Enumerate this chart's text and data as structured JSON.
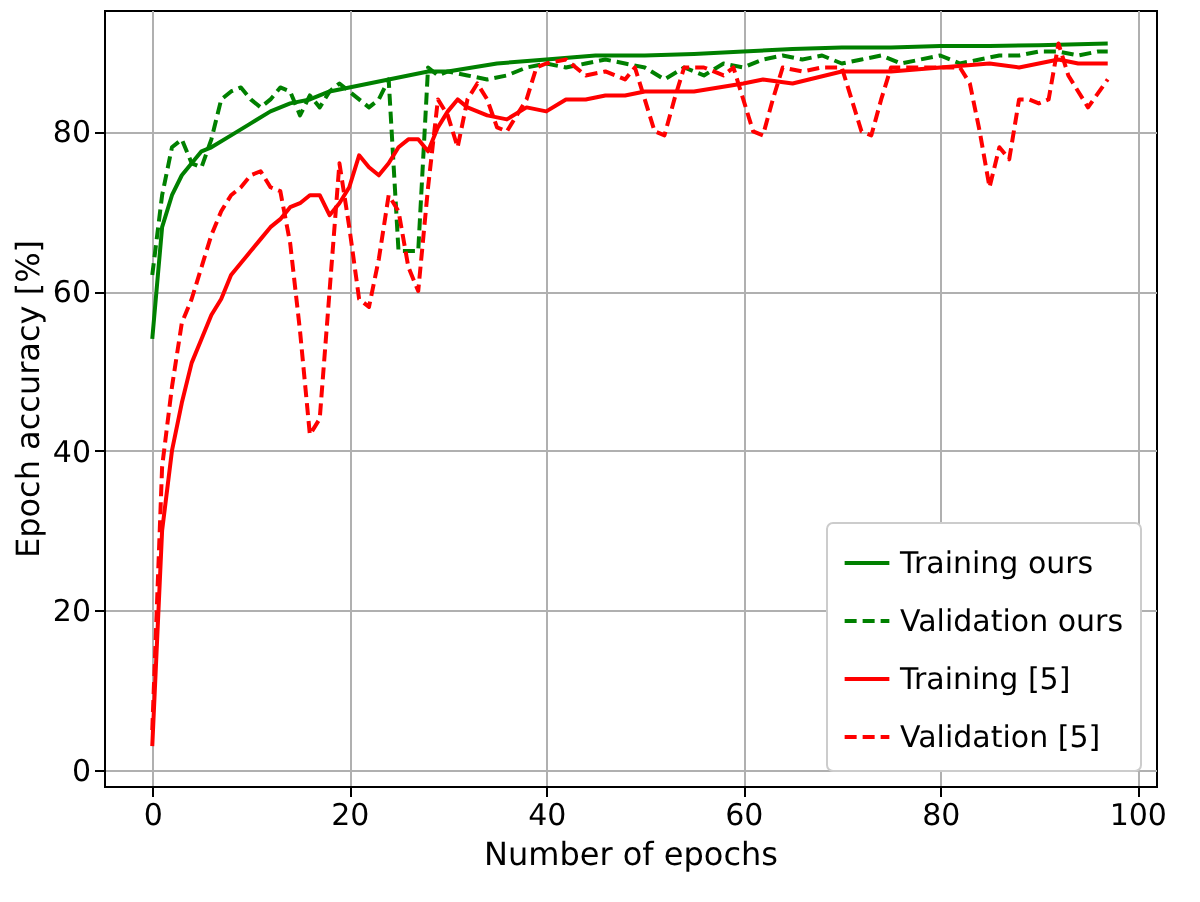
{
  "chart_data": {
    "type": "line",
    "xlabel": "Number of epochs",
    "ylabel": "Epoch accuracy [%]",
    "xlim": [
      -4.9,
      101.9
    ],
    "ylim": [
      -2,
      95.2
    ],
    "xticks": [
      0,
      20,
      40,
      60,
      80,
      100
    ],
    "yticks": [
      0,
      20,
      40,
      60,
      80
    ],
    "grid": true,
    "legend": "bottom right",
    "marker": "none",
    "series": [
      {
        "name": "Training ours",
        "color": "#008000",
        "line_style": "solid",
        "x": [
          0,
          1,
          2,
          3,
          4,
          5,
          6,
          8,
          10,
          12,
          14,
          16,
          18,
          20,
          22,
          24,
          26,
          28,
          30,
          35,
          40,
          45,
          50,
          55,
          60,
          65,
          70,
          75,
          80,
          85,
          90,
          97
        ],
        "values": [
          54,
          68,
          72,
          74.5,
          76,
          77.5,
          78,
          79.5,
          81,
          82.5,
          83.5,
          84,
          85,
          85.5,
          86,
          86.5,
          87,
          87.5,
          87.5,
          88.5,
          89,
          89.5,
          89.5,
          89.7,
          90,
          90.3,
          90.5,
          90.5,
          90.7,
          90.7,
          90.8,
          91
        ]
      },
      {
        "name": "Validation ours",
        "color": "#008000",
        "line_style": "dashed",
        "x": [
          0,
          1,
          2,
          3,
          4,
          5,
          6,
          7,
          8,
          9,
          10,
          11,
          12,
          13,
          14,
          15,
          16,
          17,
          18,
          19,
          20,
          21,
          22,
          23,
          24,
          25,
          26,
          27,
          28,
          29,
          30,
          32,
          34,
          36,
          38,
          40,
          42,
          44,
          46,
          48,
          50,
          52,
          54,
          56,
          58,
          60,
          62,
          64,
          66,
          68,
          70,
          72,
          74,
          76,
          78,
          80,
          82,
          84,
          86,
          88,
          90,
          92,
          94,
          96,
          97
        ],
        "values": [
          62,
          72,
          78,
          79,
          76,
          75.5,
          79,
          84,
          85,
          85.5,
          84,
          83,
          84,
          85.5,
          85,
          82,
          84.5,
          83,
          85,
          86,
          85,
          84,
          83,
          84,
          86.5,
          65,
          65,
          65,
          88,
          87,
          87.5,
          87,
          86.5,
          87,
          88,
          88.5,
          88,
          88.5,
          89,
          88.5,
          88,
          86.5,
          88,
          87,
          88.5,
          88,
          89,
          89.5,
          89,
          89.5,
          88.5,
          89,
          89.5,
          88.5,
          89,
          89.5,
          88.5,
          89,
          89.5,
          89.5,
          90,
          90,
          89.5,
          90,
          90
        ]
      },
      {
        "name": "Training [5]",
        "color": "#ff0000",
        "line_style": "solid",
        "x": [
          0,
          1,
          2,
          3,
          4,
          5,
          6,
          7,
          8,
          9,
          10,
          11,
          12,
          13,
          14,
          15,
          16,
          17,
          18,
          19,
          20,
          21,
          22,
          23,
          24,
          25,
          26,
          27,
          28,
          29,
          30,
          31,
          32,
          34,
          36,
          38,
          40,
          42,
          44,
          46,
          48,
          50,
          55,
          60,
          62,
          65,
          70,
          75,
          80,
          85,
          88,
          90,
          92,
          94,
          97
        ],
        "values": [
          3,
          30,
          40,
          46,
          51,
          54,
          57,
          59,
          62,
          63.5,
          65,
          66.5,
          68,
          69,
          70.5,
          71,
          72,
          72,
          69.5,
          71,
          73,
          77,
          75.5,
          74.5,
          76,
          78,
          79,
          79,
          77.5,
          80.5,
          82.5,
          84,
          83,
          82,
          81.5,
          83,
          82.5,
          84,
          84,
          84.5,
          84.5,
          85,
          85,
          86,
          86.5,
          86,
          87.5,
          87.5,
          88,
          88.5,
          88,
          88.5,
          89,
          88.5,
          88.5
        ]
      },
      {
        "name": "Validation [5]",
        "color": "#ff0000",
        "line_style": "dashed",
        "x": [
          0,
          1,
          2,
          3,
          4,
          5,
          6,
          7,
          8,
          9,
          10,
          11,
          12,
          13,
          14,
          15,
          16,
          17,
          18,
          19,
          20,
          21,
          22,
          23,
          24,
          25,
          26,
          27,
          28,
          29,
          30,
          31,
          32,
          33,
          34,
          35,
          36,
          37,
          38,
          39,
          40,
          42,
          44,
          46,
          48,
          49,
          50,
          51,
          52,
          53,
          54,
          56,
          58,
          59,
          60,
          61,
          62,
          63,
          64,
          66,
          68,
          70,
          71,
          72,
          73,
          74,
          75,
          77,
          80,
          82,
          83,
          84,
          85,
          86,
          87,
          88,
          89,
          90,
          91,
          92,
          93,
          95,
          97
        ],
        "values": [
          5,
          38,
          48,
          56,
          59,
          63,
          67,
          70,
          72,
          73,
          74.5,
          75,
          73,
          72.5,
          66,
          55,
          42,
          44,
          60,
          76,
          68,
          59,
          58,
          64,
          72,
          70,
          63,
          60,
          73,
          84,
          82,
          78,
          84,
          86,
          84,
          80.5,
          80,
          82,
          84,
          88,
          88.5,
          89,
          87,
          87.5,
          86.5,
          88,
          84,
          80,
          79.5,
          84,
          88,
          88,
          87,
          88,
          84,
          80,
          79.5,
          84,
          88,
          87.5,
          88,
          88,
          84,
          80,
          79.5,
          84,
          88,
          88,
          88,
          88,
          86,
          80,
          73,
          78,
          76.5,
          84,
          84,
          83.5,
          84,
          91,
          87,
          83,
          86.5
        ]
      }
    ]
  }
}
